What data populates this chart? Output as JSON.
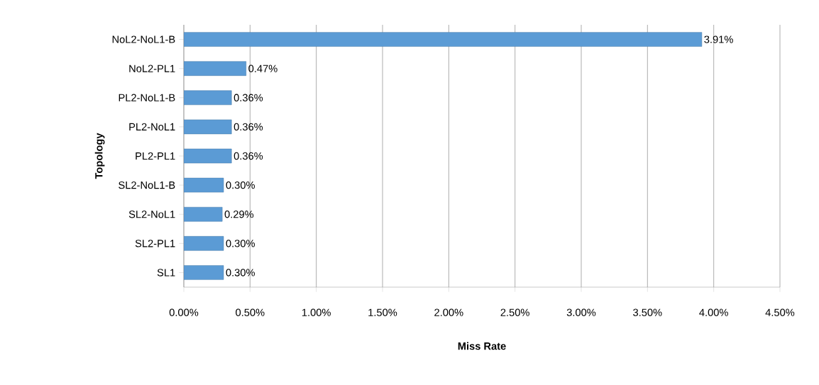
{
  "chart_data": {
    "type": "bar",
    "orientation": "horizontal",
    "xlabel": "Miss Rate",
    "ylabel": "Topology",
    "categories": [
      "NoL2-NoL1-B",
      "NoL2-PL1",
      "PL2-NoL1-B",
      "PL2-NoL1",
      "PL2-PL1",
      "SL2-NoL1-B",
      "SL2-NoL1",
      "SL2-PL1",
      "SL1"
    ],
    "values": [
      3.91,
      0.47,
      0.36,
      0.36,
      0.36,
      0.3,
      0.29,
      0.3,
      0.3
    ],
    "value_labels": [
      "3.91%",
      "0.47%",
      "0.36%",
      "0.36%",
      "0.36%",
      "0.30%",
      "0.29%",
      "0.30%",
      "0.30%"
    ],
    "color": "#5b9bd5",
    "xlim": [
      0,
      4.5
    ],
    "xticks": [
      {
        "value": 0,
        "label": "0.00%"
      },
      {
        "value": 0.5,
        "label": "0.50%"
      },
      {
        "value": 1,
        "label": "1.00%"
      },
      {
        "value": 1.5,
        "label": "1.50%"
      },
      {
        "value": 2,
        "label": "2.00%"
      },
      {
        "value": 2.5,
        "label": "2.50%"
      },
      {
        "value": 3,
        "label": "3.00%"
      },
      {
        "value": 3.5,
        "label": "3.50%"
      },
      {
        "value": 4,
        "label": "4.00%"
      },
      {
        "value": 4.5,
        "label": "4.50%"
      }
    ],
    "grid": "x"
  }
}
